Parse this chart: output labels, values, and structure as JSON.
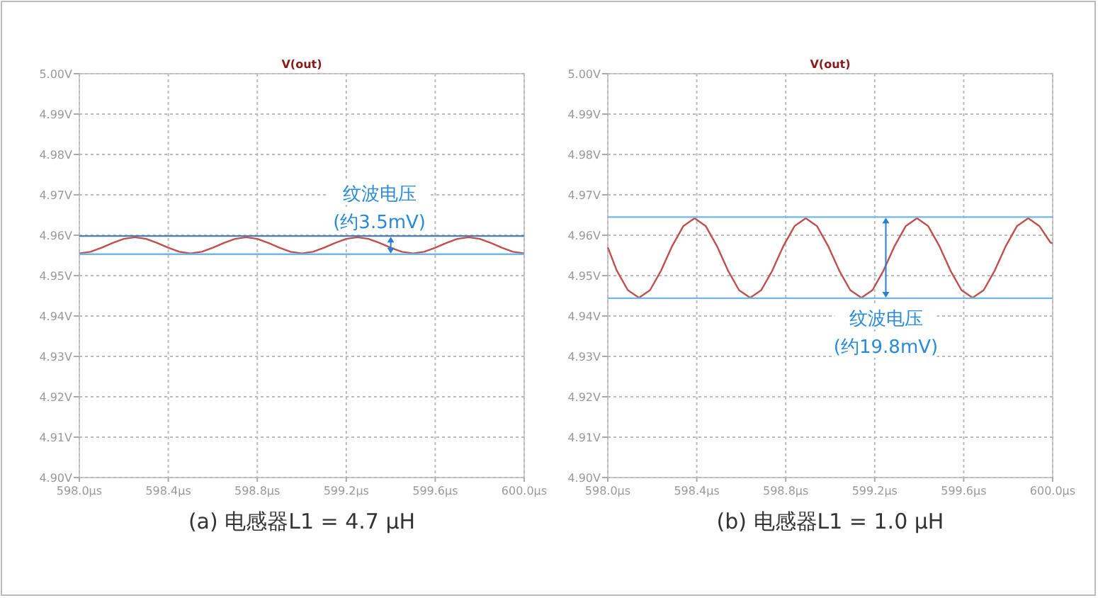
{
  "chart_data": [
    {
      "type": "line",
      "title": "V(out)",
      "xlabel": "(a) 电感器L1 = 4.7 μH",
      "grid": true,
      "marker": "none",
      "line_style": "solid",
      "xlim": [
        598,
        600
      ],
      "ylim": [
        4.9,
        5
      ],
      "xticks": [
        {
          "value": 598,
          "label": "598.0µs"
        },
        {
          "value": 598.4,
          "label": "598.4µs"
        },
        {
          "value": 598.8,
          "label": "598.8µs"
        },
        {
          "value": 599.2,
          "label": "599.2µs"
        },
        {
          "value": 599.6,
          "label": "599.6µs"
        },
        {
          "value": 600,
          "label": "600.0µs"
        }
      ],
      "yticks": [
        {
          "value": 4.9,
          "label": "4.90V"
        },
        {
          "value": 4.91,
          "label": "4.91V"
        },
        {
          "value": 4.92,
          "label": "4.92V"
        },
        {
          "value": 4.93,
          "label": "4.93V"
        },
        {
          "value": 4.94,
          "label": "4.94V"
        },
        {
          "value": 4.95,
          "label": "4.95V"
        },
        {
          "value": 4.96,
          "label": "4.96V"
        },
        {
          "value": 4.97,
          "label": "4.97V"
        },
        {
          "value": 4.98,
          "label": "4.98V"
        },
        {
          "value": 4.99,
          "label": "4.99V"
        },
        {
          "value": 5,
          "label": "5.00V"
        }
      ],
      "series": [
        {
          "color": "#c0504d",
          "x": [
            598,
            598.05,
            598.1,
            598.15,
            598.2,
            598.25,
            598.3,
            598.35,
            598.4,
            598.45,
            598.5,
            598.55,
            598.6,
            598.65,
            598.7,
            598.75,
            598.8,
            598.85,
            598.9,
            598.95,
            599,
            599.05,
            599.1,
            599.15,
            599.2,
            599.25,
            599.3,
            599.35,
            599.4,
            599.45,
            599.5,
            599.55,
            599.6,
            599.65,
            599.7,
            599.75,
            599.8,
            599.85,
            599.9,
            599.95,
            600
          ],
          "values": [
            4.9555,
            4.9559,
            4.9569,
            4.9581,
            4.9591,
            4.9595,
            4.9591,
            4.9581,
            4.9569,
            4.9559,
            4.9555,
            4.9559,
            4.9569,
            4.9581,
            4.9591,
            4.9595,
            4.9591,
            4.9581,
            4.9569,
            4.9559,
            4.9555,
            4.9559,
            4.9569,
            4.9581,
            4.9591,
            4.9595,
            4.9591,
            4.9581,
            4.9569,
            4.9559,
            4.9555,
            4.9559,
            4.9569,
            4.9581,
            4.9591,
            4.9595,
            4.9591,
            4.9581,
            4.9569,
            4.9559,
            4.9555
          ]
        }
      ],
      "ref_lines": [
        {
          "axis": "y",
          "value": 4.9598,
          "color": "#4a7fb5"
        },
        {
          "axis": "y",
          "value": 4.9553,
          "color": "#6fb8e8"
        }
      ],
      "annotations": [
        {
          "text": "纹波电压",
          "x": 599.4,
          "y": 4.9598
        },
        "(约3.5mV)"
      ]
    },
    {
      "type": "line",
      "title": "V(out)",
      "xlabel": "(b) 电感器L1 = 1.0 μH",
      "grid": true,
      "marker": "none",
      "line_style": "solid",
      "xlim": [
        598,
        600
      ],
      "ylim": [
        4.9,
        5
      ],
      "xticks": [
        {
          "value": 598,
          "label": "598.0µs"
        },
        {
          "value": 598.4,
          "label": "598.4µs"
        },
        {
          "value": 598.8,
          "label": "598.8µs"
        },
        {
          "value": 599.2,
          "label": "599.2µs"
        },
        {
          "value": 599.6,
          "label": "599.6µs"
        },
        {
          "value": 600,
          "label": "600.0µs"
        }
      ],
      "yticks": [
        {
          "value": 4.9,
          "label": "4.90V"
        },
        {
          "value": 4.91,
          "label": "4.91V"
        },
        {
          "value": 4.92,
          "label": "4.92V"
        },
        {
          "value": 4.93,
          "label": "4.93V"
        },
        {
          "value": 4.94,
          "label": "4.94V"
        },
        {
          "value": 4.95,
          "label": "4.95V"
        },
        {
          "value": 4.96,
          "label": "4.96V"
        },
        {
          "value": 4.97,
          "label": "4.97V"
        },
        {
          "value": 4.98,
          "label": "4.98V"
        },
        {
          "value": 4.99,
          "label": "4.99V"
        },
        {
          "value": 5,
          "label": "5.00V"
        }
      ],
      "series": [
        {
          "color": "#c0504d",
          "x": [
            598,
            598.04,
            598.09,
            598.14,
            598.19,
            598.24,
            598.29,
            598.34,
            598.39,
            598.44,
            598.49,
            598.54,
            598.59,
            598.64,
            598.69,
            598.74,
            598.79,
            598.84,
            598.89,
            598.94,
            598.99,
            599.04,
            599.09,
            599.14,
            599.19,
            599.24,
            599.29,
            599.34,
            599.39,
            599.44,
            599.49,
            599.54,
            599.59,
            599.64,
            599.69,
            599.74,
            599.79,
            599.84,
            599.89,
            599.94,
            599.99,
            600
          ],
          "values": [
            4.957,
            4.9513,
            4.9464,
            4.9445,
            4.9464,
            4.9513,
            4.9574,
            4.9623,
            4.9642,
            4.9623,
            4.9574,
            4.9513,
            4.9464,
            4.9445,
            4.9464,
            4.9513,
            4.9574,
            4.9623,
            4.9642,
            4.9623,
            4.9574,
            4.9513,
            4.9464,
            4.9445,
            4.9464,
            4.9513,
            4.9574,
            4.9623,
            4.9642,
            4.9623,
            4.9574,
            4.9513,
            4.9464,
            4.9445,
            4.9464,
            4.9513,
            4.9574,
            4.9623,
            4.9642,
            4.9623,
            4.9582,
            4.958
          ]
        }
      ],
      "ref_lines": [
        {
          "axis": "y",
          "value": 4.9645,
          "color": "#6fb8e8"
        },
        {
          "axis": "y",
          "value": 4.9444,
          "color": "#6fb8e8"
        }
      ],
      "annotations": [
        {
          "text": "纹波电压",
          "x": 599.25,
          "y": 4.9444
        },
        "(约19.8mV)"
      ]
    }
  ]
}
